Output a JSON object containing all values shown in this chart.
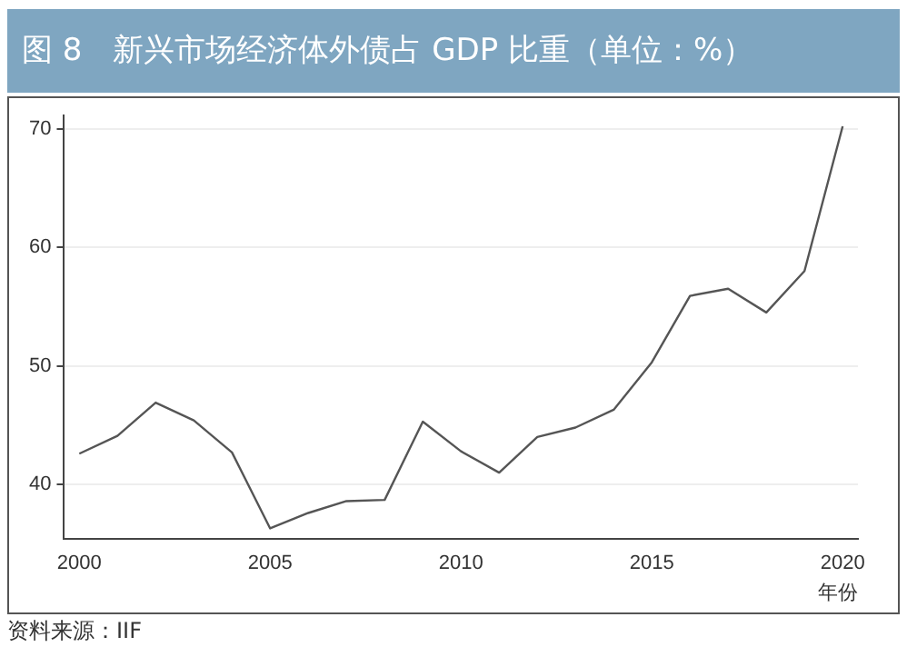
{
  "chart_data": {
    "type": "line",
    "title": "图 8　新兴市场经济体外债占 GDP 比重（单位：%）",
    "xlabel": "年份",
    "annotations": [
      "资料来源：IIF"
    ],
    "x": [
      2000,
      2001,
      2002,
      2003,
      2004,
      2005,
      2006,
      2007,
      2008,
      2009,
      2010,
      2011,
      2012,
      2013,
      2014,
      2015,
      2016,
      2017,
      2018,
      2019,
      2020
    ],
    "series": [
      {
        "color": "#555555",
        "values": [
          42.6,
          44.1,
          46.9,
          45.4,
          42.7,
          36.3,
          37.6,
          38.6,
          38.7,
          45.3,
          42.8,
          41.0,
          44.0,
          44.8,
          46.3,
          50.3,
          55.9,
          56.5,
          54.5,
          58.0,
          70.2
        ]
      }
    ],
    "xlim": [
      1999.6,
      2020.4
    ],
    "xticks": [
      2000,
      2005,
      2010,
      2015,
      2020
    ],
    "ylim": [
      35.4,
      71.1
    ],
    "yticks": [
      40,
      50,
      60,
      70
    ],
    "grid": "y",
    "legend": false,
    "marker": "none",
    "line_style": "solid"
  }
}
